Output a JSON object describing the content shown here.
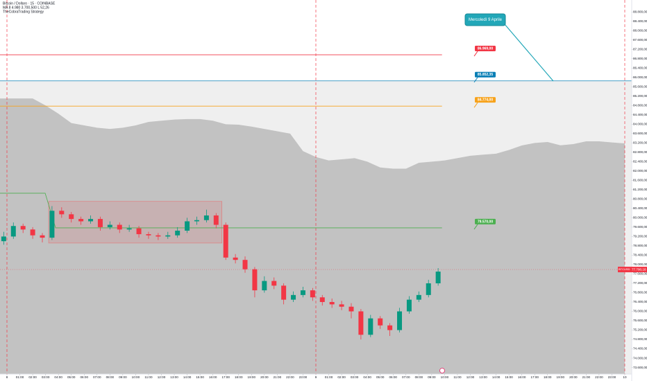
{
  "chart_data": {
    "type": "candlestick",
    "title": "Bitcoin / Dollaro · 15 · COINBASE",
    "indicators": [
      "MA  8  4.980  3.700,500  L  52,26",
      "TheCobraTrading Strategy"
    ],
    "xlim": [
      -0.54,
      48.54
    ],
    "ylim": [
      73320,
      89310
    ],
    "xticks": [
      {
        "value": 0,
        "label": "8"
      },
      {
        "value": 1,
        "label": "01:00"
      },
      {
        "value": 2,
        "label": "02:00"
      },
      {
        "value": 3,
        "label": "03:00"
      },
      {
        "value": 4,
        "label": "04:00"
      },
      {
        "value": 5,
        "label": "05:00"
      },
      {
        "value": 6,
        "label": "06:00"
      },
      {
        "value": 7,
        "label": "07:00"
      },
      {
        "value": 8,
        "label": "08:00"
      },
      {
        "value": 9,
        "label": "09:00"
      },
      {
        "value": 10,
        "label": "10:00"
      },
      {
        "value": 11,
        "label": "11:00"
      },
      {
        "value": 12,
        "label": "12:00"
      },
      {
        "value": 13,
        "label": "13:00"
      },
      {
        "value": 14,
        "label": "14:00"
      },
      {
        "value": 15,
        "label": "15:00"
      },
      {
        "value": 16,
        "label": "16:00"
      },
      {
        "value": 17,
        "label": "17:00"
      },
      {
        "value": 18,
        "label": "18:00"
      },
      {
        "value": 19,
        "label": "19:00"
      },
      {
        "value": 20,
        "label": "20:00"
      },
      {
        "value": 21,
        "label": "21:00"
      },
      {
        "value": 22,
        "label": "22:00"
      },
      {
        "value": 23,
        "label": "23:00"
      },
      {
        "value": 24,
        "label": "9"
      },
      {
        "value": 25,
        "label": "01:00"
      },
      {
        "value": 26,
        "label": "02:00"
      },
      {
        "value": 27,
        "label": "03:00"
      },
      {
        "value": 28,
        "label": "04:00"
      },
      {
        "value": 29,
        "label": "05:00"
      },
      {
        "value": 30,
        "label": "06:00"
      },
      {
        "value": 31,
        "label": "07:00"
      },
      {
        "value": 32,
        "label": "08:00"
      },
      {
        "value": 33,
        "label": "09:00"
      },
      {
        "value": 34,
        "label": "10:00"
      },
      {
        "value": 35,
        "label": "11:00"
      },
      {
        "value": 36,
        "label": "12:00"
      },
      {
        "value": 37,
        "label": "13:00"
      },
      {
        "value": 38,
        "label": "14:00"
      },
      {
        "value": 39,
        "label": "15:00"
      },
      {
        "value": 40,
        "label": "16:00"
      },
      {
        "value": 41,
        "label": "17:00"
      },
      {
        "value": 42,
        "label": "18:00"
      },
      {
        "value": 43,
        "label": "19:00"
      },
      {
        "value": 44,
        "label": "20:00"
      },
      {
        "value": 45,
        "label": "21:00"
      },
      {
        "value": 46,
        "label": "22:00"
      },
      {
        "value": 47,
        "label": "23:00"
      },
      {
        "value": 48,
        "label": "10"
      }
    ],
    "yticks": [
      {
        "value": 73600,
        "label": "73.600,00"
      },
      {
        "value": 74000,
        "label": "74.000,00"
      },
      {
        "value": 74400,
        "label": "74.400,00"
      },
      {
        "value": 74800,
        "label": "74.800,00"
      },
      {
        "value": 75200,
        "label": "75.200,00"
      },
      {
        "value": 75600,
        "label": "75.600,00"
      },
      {
        "value": 76000,
        "label": "76.000,00"
      },
      {
        "value": 76400,
        "label": "76.400,00"
      },
      {
        "value": 76800,
        "label": "76.800,00"
      },
      {
        "value": 77200,
        "label": "77.200,00"
      },
      {
        "value": 77600,
        "label": "77.600,00"
      },
      {
        "value": 78000,
        "label": "78.000,00"
      },
      {
        "value": 78400,
        "label": "78.400,00"
      },
      {
        "value": 78800,
        "label": "78.800,00"
      },
      {
        "value": 79200,
        "label": "79.200,00"
      },
      {
        "value": 79600,
        "label": "79.600,00"
      },
      {
        "value": 80000,
        "label": "80.000,00"
      },
      {
        "value": 80400,
        "label": "80.400,00"
      },
      {
        "value": 80800,
        "label": "80.800,00"
      },
      {
        "value": 81200,
        "label": "81.200,00"
      },
      {
        "value": 81600,
        "label": "81.600,00"
      },
      {
        "value": 82000,
        "label": "82.000,00"
      },
      {
        "value": 82400,
        "label": "82.400,00"
      },
      {
        "value": 82800,
        "label": "82.800,00"
      },
      {
        "value": 83200,
        "label": "83.200,00"
      },
      {
        "value": 83600,
        "label": "83.600,00"
      },
      {
        "value": 84000,
        "label": "84.000,00"
      },
      {
        "value": 84400,
        "label": "84.400,00"
      },
      {
        "value": 84800,
        "label": "84.800,00"
      },
      {
        "value": 85200,
        "label": "85.200,00"
      },
      {
        "value": 85600,
        "label": "85.600,00"
      },
      {
        "value": 86000,
        "label": "86.000,00"
      },
      {
        "value": 86400,
        "label": "86.400,00"
      },
      {
        "value": 86800,
        "label": "86.800,00"
      },
      {
        "value": 87200,
        "label": "87.200,00"
      },
      {
        "value": 87600,
        "label": "87.600,00"
      },
      {
        "value": 88000,
        "label": "88.000,00"
      },
      {
        "value": 88400,
        "label": "88.400,00"
      },
      {
        "value": 88800,
        "label": "88.800,00"
      }
    ],
    "candle_x": [
      -0.25,
      0.5,
      1.25,
      2,
      2.75,
      3.5,
      4.25,
      5,
      5.75,
      6.5,
      7.25,
      8,
      8.75,
      9.5,
      10.25,
      11,
      11.75,
      12.5,
      13.25,
      14,
      14.75,
      15.5,
      16.25,
      17,
      17.75,
      18.5,
      19.25,
      20,
      20.75,
      21.5,
      22.25,
      23,
      23.75,
      24.5,
      25.25,
      26,
      26.75,
      27.5,
      28.25,
      29,
      29.75,
      30.5,
      31.25,
      32,
      32.75,
      33.5
    ],
    "candles": [
      [
        79000,
        79400,
        78850,
        79200
      ],
      [
        79200,
        79800,
        79100,
        79650
      ],
      [
        79650,
        79750,
        79350,
        79500
      ],
      [
        79500,
        79600,
        79100,
        79250
      ],
      [
        79250,
        79350,
        78950,
        79150
      ],
      [
        79150,
        80500,
        79050,
        80300
      ],
      [
        80300,
        80450,
        80000,
        80150
      ],
      [
        80150,
        80250,
        79800,
        79950
      ],
      [
        79950,
        80050,
        79700,
        79850
      ],
      [
        79850,
        80100,
        79750,
        79950
      ],
      [
        79950,
        80050,
        79450,
        79600
      ],
      [
        79600,
        79850,
        79500,
        79700
      ],
      [
        79700,
        79800,
        79350,
        79500
      ],
      [
        79500,
        79700,
        79400,
        79550
      ],
      [
        79550,
        79650,
        79150,
        79300
      ],
      [
        79300,
        79400,
        79100,
        79250
      ],
      [
        79250,
        79350,
        79050,
        79200
      ],
      [
        79200,
        79400,
        79100,
        79250
      ],
      [
        79250,
        79600,
        79150,
        79450
      ],
      [
        79450,
        80000,
        79350,
        79850
      ],
      [
        79850,
        80050,
        79700,
        79900
      ],
      [
        79900,
        80350,
        79800,
        80100
      ],
      [
        80100,
        80200,
        79550,
        79700
      ],
      [
        79700,
        79800,
        78200,
        78300
      ],
      [
        78300,
        78450,
        78050,
        78200
      ],
      [
        78200,
        78350,
        77650,
        77800
      ],
      [
        77800,
        77900,
        76600,
        76900
      ],
      [
        76900,
        77500,
        76800,
        77300
      ],
      [
        77300,
        77450,
        76950,
        77100
      ],
      [
        77100,
        77200,
        76300,
        76500
      ],
      [
        76500,
        76850,
        76400,
        76700
      ],
      [
        76700,
        77050,
        76600,
        76900
      ],
      [
        76900,
        77000,
        76450,
        76600
      ],
      [
        76600,
        76700,
        76250,
        76400
      ],
      [
        76400,
        76550,
        76150,
        76300
      ],
      [
        76300,
        76450,
        76050,
        76200
      ],
      [
        76200,
        76350,
        75700,
        76000
      ],
      [
        76000,
        76100,
        74800,
        75000
      ],
      [
        75000,
        75850,
        74900,
        75700
      ],
      [
        75700,
        75800,
        75250,
        75400
      ],
      [
        75400,
        75500,
        74950,
        75200
      ],
      [
        75200,
        76150,
        75100,
        76000
      ],
      [
        76000,
        76650,
        75900,
        76500
      ],
      [
        76500,
        76850,
        76400,
        76700
      ],
      [
        76700,
        77350,
        76600,
        77200
      ],
      [
        77200,
        77850,
        77100,
        77700
      ]
    ],
    "up_color": "#089981",
    "down_color": "#f23645",
    "cloud": {
      "x": [
        0,
        1,
        2,
        3,
        4,
        5,
        6,
        7,
        8,
        9,
        10,
        11,
        12,
        13,
        14,
        15,
        16,
        17,
        18,
        19,
        20,
        21,
        22,
        23,
        24,
        25,
        26,
        27,
        28,
        29,
        30,
        31,
        32,
        33,
        34,
        35,
        36,
        37,
        38,
        39,
        40,
        41,
        42,
        43,
        44,
        45,
        46,
        47,
        48
      ],
      "values": [
        85100,
        85100,
        85100,
        84800,
        84450,
        84050,
        83950,
        83850,
        83800,
        83850,
        83950,
        84100,
        84150,
        84200,
        84220,
        84220,
        84150,
        84000,
        83980,
        83900,
        83800,
        83700,
        83600,
        82850,
        82600,
        82450,
        82500,
        82550,
        82400,
        82150,
        82100,
        82100,
        82350,
        82400,
        82450,
        82550,
        82650,
        82700,
        82740,
        82900,
        83090,
        83200,
        83240,
        83100,
        83150,
        83270,
        83270,
        83220,
        83180
      ]
    },
    "levels": [
      {
        "label": "86.969,00",
        "color": "#f23645",
        "x": [
          -0.54,
          33.8
        ],
        "values": [
          86969,
          86969
        ]
      },
      {
        "label": "85.852,35",
        "color": "#0a7fb5",
        "x": [
          -0.54,
          48.54
        ],
        "values": [
          85852.35,
          85852.35
        ]
      },
      {
        "label": "84.774,00",
        "color": "#f7a21b",
        "x": [
          -0.54,
          33.8
        ],
        "values": [
          84774,
          84774
        ]
      },
      {
        "label": "79.570,00",
        "color": "#4caf50",
        "x": [
          -0.54,
          2.97,
          3.78,
          33.8
        ],
        "values": [
          81050,
          81050,
          79570,
          79570
        ]
      }
    ],
    "range_box": {
      "x": [
        3.24,
        16.7
      ],
      "values": [
        80700,
        78920
      ]
    },
    "annotation": "Mercoledì 9 Aprile",
    "last_price": {
      "name": "BTCUSD",
      "value": 77790.16,
      "label": "77.790,16"
    }
  }
}
